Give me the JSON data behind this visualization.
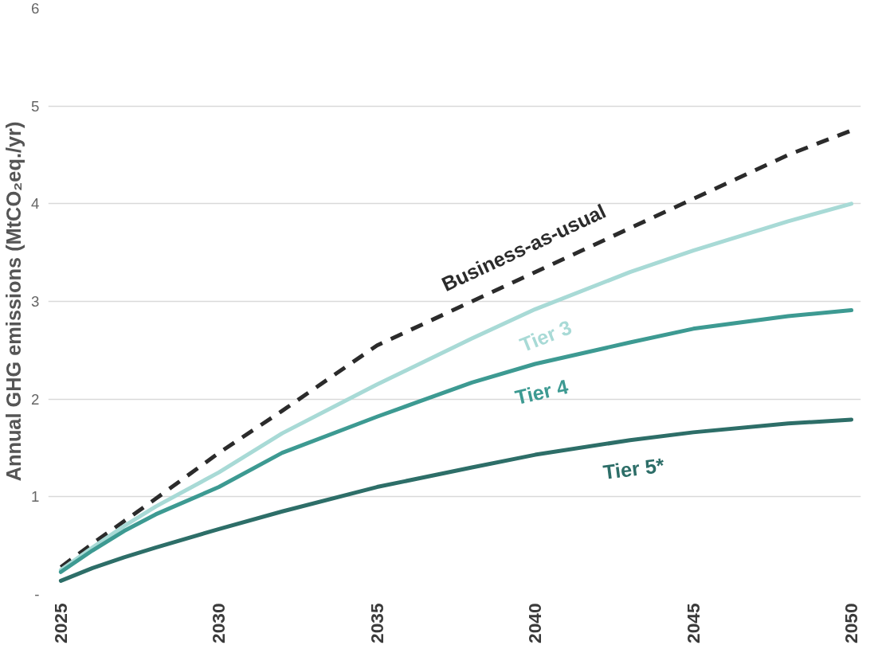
{
  "chart_data": {
    "type": "line",
    "ylabel": "Annual GHG emissions (MtCO₂eq./yr)",
    "x": [
      2025,
      2026,
      2027,
      2028,
      2030,
      2032,
      2035,
      2038,
      2040,
      2043,
      2045,
      2048,
      2050
    ],
    "xlim": [
      2024.6,
      2050.3
    ],
    "xticks": [
      2025,
      2030,
      2035,
      2040,
      2045,
      2050
    ],
    "ylim": [
      0,
      6
    ],
    "yticks": [
      {
        "value": 0,
        "label": "-"
      },
      1,
      2,
      3,
      4,
      5,
      6
    ],
    "grid": "y",
    "series": [
      {
        "name": "Business-as-usual",
        "color": "#2b2b2b",
        "line_style": "dashed",
        "values": [
          0.28,
          0.52,
          0.75,
          0.98,
          1.45,
          1.88,
          2.55,
          3.0,
          3.3,
          3.75,
          4.05,
          4.5,
          4.75
        ]
      },
      {
        "name": "Tier 3",
        "color": "#a8dad6",
        "values": [
          0.25,
          0.48,
          0.7,
          0.9,
          1.25,
          1.65,
          2.15,
          2.62,
          2.92,
          3.3,
          3.52,
          3.82,
          4.0
        ]
      },
      {
        "name": "Tier 4",
        "color": "#3d9a92",
        "values": [
          0.23,
          0.45,
          0.65,
          0.82,
          1.1,
          1.45,
          1.82,
          2.17,
          2.36,
          2.58,
          2.72,
          2.85,
          2.91
        ]
      },
      {
        "name": "Tier 5*",
        "color": "#2d6e68",
        "values": [
          0.14,
          0.27,
          0.38,
          0.48,
          0.67,
          0.85,
          1.1,
          1.3,
          1.43,
          1.58,
          1.66,
          1.75,
          1.79
        ]
      }
    ]
  }
}
